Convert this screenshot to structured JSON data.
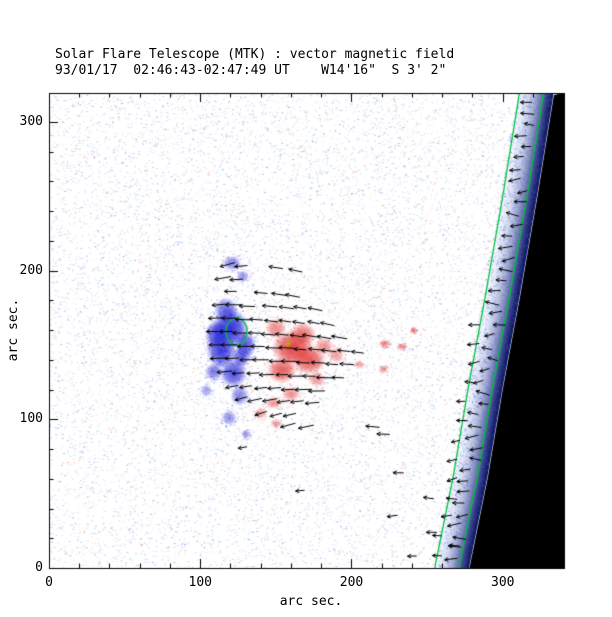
{
  "chart_data": {
    "type": "heatmap",
    "title": "Solar Flare Telescope (MTK) : vector magnetic field",
    "subtitle": "93/01/17  02:46:43-02:47:49 UT    W14'16\"  S 3' 2\"",
    "xlabel": "arc sec.",
    "ylabel": "arc sec.",
    "xlim": [
      0,
      340.5
    ],
    "ylim": [
      0,
      319.4
    ],
    "xticks": [
      0,
      100,
      200,
      300
    ],
    "yticks": [
      0,
      100,
      200,
      300
    ],
    "minor_tick_step": 20,
    "grid": false,
    "legend": false,
    "colors": {
      "frame": "#000000",
      "negative_polarity": "#2323d7",
      "positive_polarity": "#e12d2d",
      "contour_green": "#00c23c",
      "marker_yellow": "#a9b800",
      "limb_black": "#000000",
      "noise_blue": "#6490e6",
      "noise_red": "#e87878"
    },
    "noise": {
      "count": 15000,
      "blue_fraction": 0.72
    },
    "limb": {
      "black_edge": [
        [
          0,
          278
        ],
        [
          60,
          290
        ],
        [
          120,
          300
        ],
        [
          180,
          311
        ],
        [
          250,
          323
        ],
        [
          319,
          334
        ]
      ],
      "band_width_arcsec": 22,
      "band_inner_rgb": [
        205,
        218,
        252
      ],
      "band_outer_rgb": [
        5,
        14,
        95
      ],
      "band_speckles": 2600,
      "contour_offsets": [
        -23,
        -7
      ]
    },
    "polarity_blobs": {
      "negative": [
        [
          120,
          161,
          12,
          14,
          0.95
        ],
        [
          114,
          146,
          10,
          12,
          0.9
        ],
        [
          122,
          131,
          9,
          10,
          0.8
        ],
        [
          117,
          173,
          8,
          9,
          0.7
        ],
        [
          111,
          157,
          8,
          10,
          0.85
        ],
        [
          130,
          150,
          7,
          9,
          0.8
        ],
        [
          127,
          142,
          6,
          7,
          0.7
        ],
        [
          126,
          116,
          6,
          7,
          0.55
        ],
        [
          119,
          101,
          5,
          5,
          0.5
        ],
        [
          121,
          205,
          6,
          5,
          0.55
        ],
        [
          128,
          196,
          4,
          4,
          0.45
        ],
        [
          104,
          119,
          4,
          4,
          0.4
        ],
        [
          130,
          90,
          3,
          3,
          0.4
        ],
        [
          109,
          132,
          6,
          6,
          0.6
        ]
      ],
      "positive": [
        [
          161,
          148,
          14,
          12,
          0.9
        ],
        [
          172,
          140,
          11,
          10,
          0.8
        ],
        [
          154,
          133,
          10,
          9,
          0.75
        ],
        [
          168,
          157,
          9,
          8,
          0.65
        ],
        [
          150,
          161,
          7,
          7,
          0.55
        ],
        [
          182,
          149,
          6,
          6,
          0.5
        ],
        [
          190,
          143,
          5,
          5,
          0.45
        ],
        [
          177,
          127,
          6,
          5,
          0.45
        ],
        [
          160,
          117,
          6,
          5,
          0.5
        ],
        [
          148,
          111,
          5,
          4,
          0.45
        ],
        [
          140,
          104,
          4,
          4,
          0.4
        ],
        [
          150,
          97,
          3,
          3,
          0.4
        ],
        [
          222,
          151,
          3,
          2.5,
          0.55
        ],
        [
          233,
          149,
          2.5,
          2,
          0.5
        ],
        [
          241,
          160,
          2,
          2,
          0.45
        ],
        [
          221,
          134,
          2.5,
          2,
          0.45
        ],
        [
          205,
          137,
          3,
          2,
          0.4
        ]
      ]
    },
    "active_region_contour": {
      "cx": 124,
      "cy": 159,
      "rx": 7,
      "ry": 9
    },
    "marker": {
      "x": 158,
      "y": 151
    },
    "vectors": {
      "default_length": 9,
      "active_region": [
        [
          118,
          204,
          195
        ],
        [
          127,
          203,
          185
        ],
        [
          150,
          202,
          172
        ],
        [
          163,
          200,
          168
        ],
        [
          115,
          195,
          190
        ],
        [
          124,
          194,
          183
        ],
        [
          120,
          186,
          180
        ],
        [
          140,
          185,
          175
        ],
        [
          152,
          184,
          172
        ],
        [
          161,
          183,
          169
        ],
        [
          112,
          177,
          185
        ],
        [
          122,
          177,
          180
        ],
        [
          131,
          176,
          178
        ],
        [
          146,
          176,
          175
        ],
        [
          157,
          175,
          172
        ],
        [
          166,
          175,
          170
        ],
        [
          176,
          174,
          168
        ],
        [
          110,
          168,
          182
        ],
        [
          119,
          168,
          180
        ],
        [
          128,
          167,
          178
        ],
        [
          137,
          167,
          176
        ],
        [
          147,
          166,
          174
        ],
        [
          156,
          166,
          172
        ],
        [
          165,
          165,
          171
        ],
        [
          175,
          165,
          169
        ],
        [
          184,
          164,
          168
        ],
        [
          108,
          159,
          180
        ],
        [
          117,
          159,
          180
        ],
        [
          126,
          158,
          179
        ],
        [
          136,
          158,
          178
        ],
        [
          145,
          157,
          176
        ],
        [
          154,
          157,
          174
        ],
        [
          164,
          156,
          172
        ],
        [
          173,
          156,
          171
        ],
        [
          182,
          155,
          170
        ],
        [
          192,
          155,
          170
        ],
        [
          110,
          150,
          180
        ],
        [
          119,
          150,
          180
        ],
        [
          129,
          149,
          180
        ],
        [
          138,
          149,
          179
        ],
        [
          148,
          148,
          178
        ],
        [
          157,
          148,
          177
        ],
        [
          166,
          147,
          176
        ],
        [
          176,
          147,
          175
        ],
        [
          185,
          146,
          174
        ],
        [
          195,
          146,
          174
        ],
        [
          204,
          145,
          173
        ],
        [
          112,
          141,
          182
        ],
        [
          121,
          141,
          182
        ],
        [
          131,
          140,
          181
        ],
        [
          140,
          140,
          180
        ],
        [
          150,
          139,
          180
        ],
        [
          159,
          139,
          179
        ],
        [
          168,
          138,
          178
        ],
        [
          178,
          138,
          177
        ],
        [
          187,
          137,
          176
        ],
        [
          197,
          137,
          176
        ],
        [
          116,
          132,
          185
        ],
        [
          125,
          131,
          184
        ],
        [
          135,
          131,
          183
        ],
        [
          144,
          130,
          182
        ],
        [
          154,
          130,
          181
        ],
        [
          163,
          129,
          180
        ],
        [
          172,
          129,
          179
        ],
        [
          182,
          128,
          178
        ],
        [
          191,
          128,
          178
        ],
        [
          121,
          122,
          190
        ],
        [
          130,
          122,
          188
        ],
        [
          140,
          121,
          186
        ],
        [
          149,
          121,
          184
        ],
        [
          158,
          120,
          183
        ],
        [
          168,
          120,
          182
        ],
        [
          177,
          119,
          181
        ],
        [
          127,
          114,
          195
        ],
        [
          136,
          113,
          192
        ],
        [
          146,
          113,
          190
        ],
        [
          155,
          112,
          188
        ],
        [
          164,
          112,
          186
        ],
        [
          174,
          111,
          185
        ],
        [
          140,
          104,
          198
        ],
        [
          150,
          103,
          195
        ],
        [
          159,
          103,
          193
        ],
        [
          158,
          96,
          195
        ],
        [
          170,
          95,
          192
        ],
        [
          214,
          95,
          175
        ],
        [
          221,
          90,
          178
        ]
      ],
      "scattered": [
        [
          128,
          81,
          190,
          6
        ],
        [
          166,
          52,
          185,
          6
        ],
        [
          231,
          64,
          180,
          7
        ],
        [
          251,
          47,
          172,
          7
        ],
        [
          227,
          35,
          188,
          7
        ],
        [
          253,
          24,
          180,
          7
        ],
        [
          268,
          15,
          176,
          7
        ],
        [
          240,
          8,
          182,
          6
        ]
      ],
      "limb_columns": [
        {
          "y_start": 6,
          "y_end": 316,
          "step": 7.5,
          "offset": -14,
          "offset_jitter": 8,
          "angle": 180,
          "angle_jitter": 36,
          "length": 8
        },
        {
          "y_start": 8,
          "y_end": 175,
          "step": 13,
          "offset": -24,
          "offset_jitter": 8,
          "angle": 180,
          "angle_jitter": 40,
          "length": 7
        }
      ]
    }
  }
}
